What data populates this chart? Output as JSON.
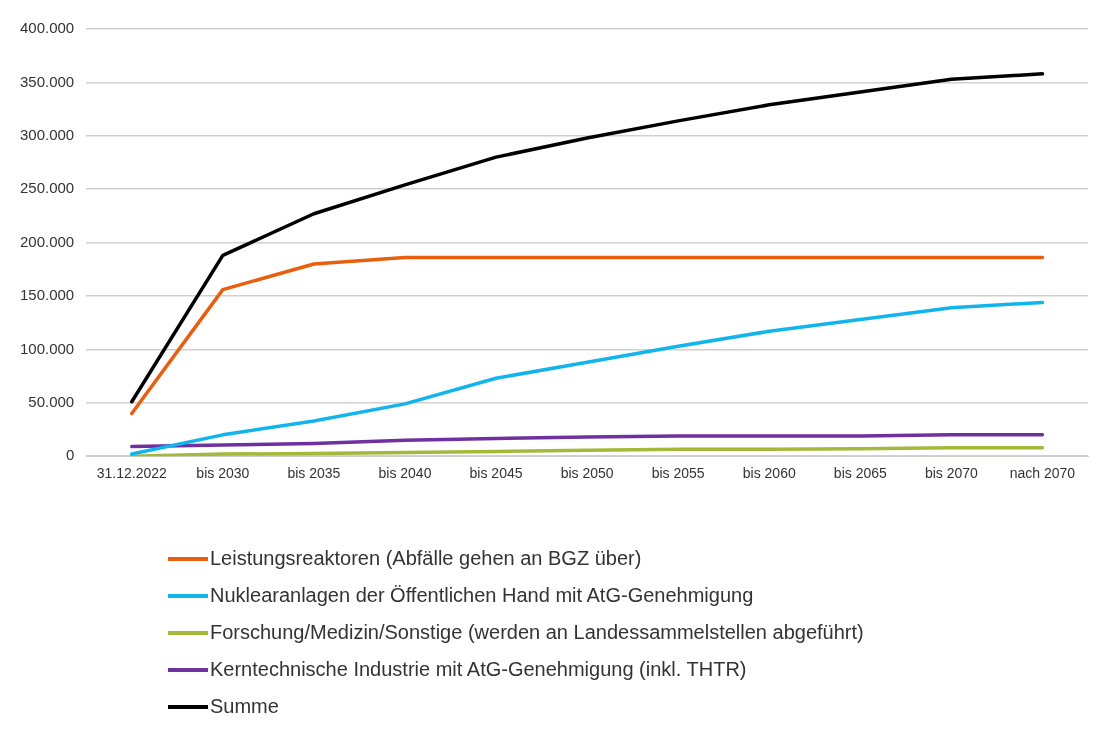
{
  "chart_data": {
    "type": "line",
    "categories": [
      "31.12.2022",
      "bis 2030",
      "bis 2035",
      "bis 2040",
      "bis 2045",
      "bis 2050",
      "bis 2055",
      "bis 2060",
      "bis 2065",
      "bis 2070",
      "nach 2070"
    ],
    "series": [
      {
        "name": "Leistungsreaktoren (Abfälle gehen an BGZ über)",
        "color": "#e8600f",
        "values": [
          40000,
          156000,
          180000,
          186000,
          186000,
          186000,
          186000,
          186000,
          186000,
          186000,
          186000
        ]
      },
      {
        "name": "Nuklearanlagen der Öffentlichen Hand mit AtG-Genehmigung",
        "color": "#12b4ec",
        "values": [
          2000,
          20000,
          33000,
          49000,
          73000,
          88000,
          103000,
          117000,
          128000,
          139000,
          144000
        ]
      },
      {
        "name": "Forschung/Medizin/Sonstige (werden an Landessammelstellen abgeführt)",
        "color": "#a5b83a",
        "values": [
          0,
          2000,
          2500,
          3500,
          4500,
          5500,
          6500,
          6500,
          7000,
          8000,
          8000
        ]
      },
      {
        "name": "Kerntechnische Industrie mit AtG-Genehmigung (inkl. THTR)",
        "color": "#7030a0",
        "values": [
          9000,
          10500,
          12000,
          15000,
          16500,
          18000,
          19000,
          19000,
          19000,
          20000,
          20000
        ]
      },
      {
        "name": "Summe",
        "color": "#000000",
        "values": [
          51000,
          188000,
          227000,
          254000,
          280000,
          298000,
          314000,
          329000,
          341000,
          353000,
          358000
        ]
      }
    ],
    "ylim": [
      0,
      400000
    ],
    "yticks": [
      {
        "value": 0,
        "label": "0"
      },
      {
        "value": 50000,
        "label": "50.000"
      },
      {
        "value": 100000,
        "label": "100.000"
      },
      {
        "value": 150000,
        "label": "150.000"
      },
      {
        "value": 200000,
        "label": "200.000"
      },
      {
        "value": 250000,
        "label": "250.000"
      },
      {
        "value": 300000,
        "label": "300.000"
      },
      {
        "value": 350000,
        "label": "350.000"
      },
      {
        "value": 400000,
        "label": "400.000"
      }
    ],
    "grid": "y",
    "legend": "bottom",
    "marker": "none",
    "line_style": "solid"
  }
}
